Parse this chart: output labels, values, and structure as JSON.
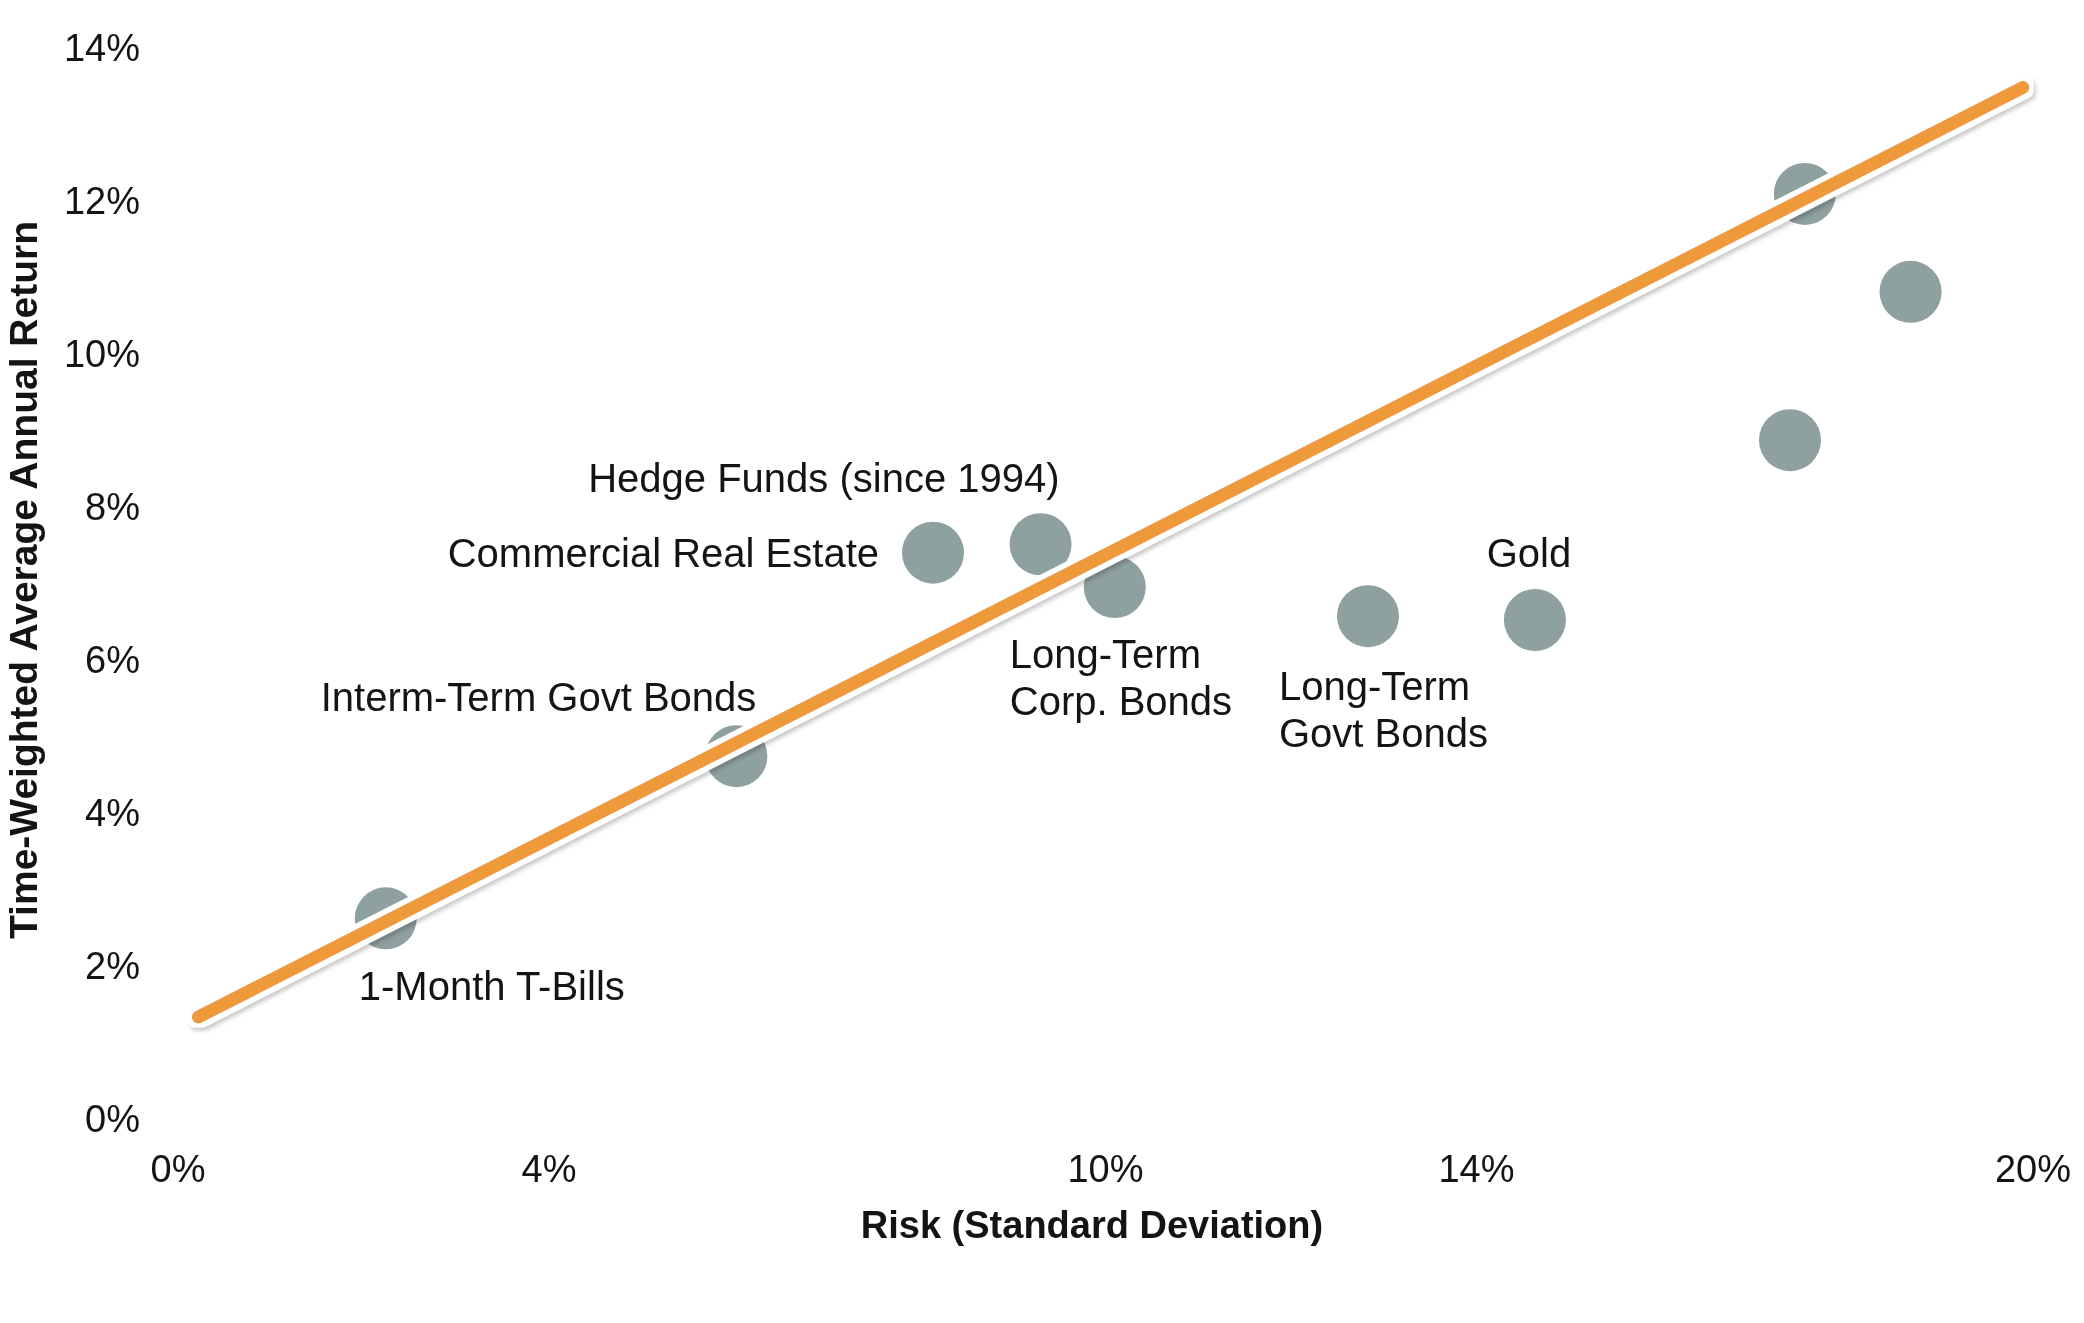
{
  "chart_data": {
    "type": "scatter",
    "xlabel": "Risk (Standard Deviation)",
    "ylabel": "Time-Weighted Average Annual Return",
    "xlim": [
      0,
      20
    ],
    "xticks": [
      {
        "value": 0,
        "label": "0%"
      },
      {
        "value": 4,
        "label": "4%"
      },
      {
        "value": 10,
        "label": "10%"
      },
      {
        "value": 14,
        "label": "14%"
      },
      {
        "value": 20,
        "label": "20%"
      }
    ],
    "ylim": [
      0,
      14
    ],
    "yticks": [
      {
        "value": 0,
        "label": "0%"
      },
      {
        "value": 2,
        "label": "2%"
      },
      {
        "value": 4,
        "label": "4%"
      },
      {
        "value": 6,
        "label": "6%"
      },
      {
        "value": 8,
        "label": "8%"
      },
      {
        "value": 10,
        "label": "10%"
      },
      {
        "value": 12,
        "label": "12%"
      },
      {
        "value": 14,
        "label": "14%"
      }
    ],
    "marker": "circle",
    "series": [
      {
        "name": "1-Month T-Bills",
        "color": "#8ea09f",
        "x": [
          2.24
        ],
        "values": [
          2.61
        ]
      },
      {
        "name": "Interm-Term Govt Bonds",
        "color": "#8ea09f",
        "x": [
          6.02
        ],
        "values": [
          4.73
        ]
      },
      {
        "name": "Commercial Real Estate",
        "color": "#8ea09f",
        "x": [
          8.14
        ],
        "values": [
          7.39
        ]
      },
      {
        "name": "Hedge Funds (since 1994)",
        "color": "#8ea09f",
        "x": [
          9.3
        ],
        "values": [
          7.5
        ]
      },
      {
        "name": "Long-Term Corp. Bonds",
        "color": "#8ea09f",
        "x": [
          10.1
        ],
        "values": [
          6.94
        ]
      },
      {
        "name": "Long-Term Govt Bonds",
        "color": "#8ea09f",
        "x": [
          12.83
        ],
        "values": [
          6.56
        ]
      },
      {
        "name": "Gold",
        "color": "#8ea09f",
        "x": [
          14.63
        ],
        "values": [
          6.51
        ]
      },
      {
        "color": "#8ea09f",
        "x": [
          17.38
        ],
        "values": [
          8.86
        ]
      },
      {
        "color": "#8ea09f",
        "x": [
          17.54
        ],
        "values": [
          12.08
        ]
      },
      {
        "color": "#8ea09f",
        "x": [
          18.68
        ],
        "values": [
          10.8
        ]
      },
      {
        "type": "line",
        "color": "#ee9a3b",
        "marker": "none",
        "x": [
          0.22,
          19.89
        ],
        "values": [
          1.32,
          13.47
        ]
      }
    ]
  }
}
